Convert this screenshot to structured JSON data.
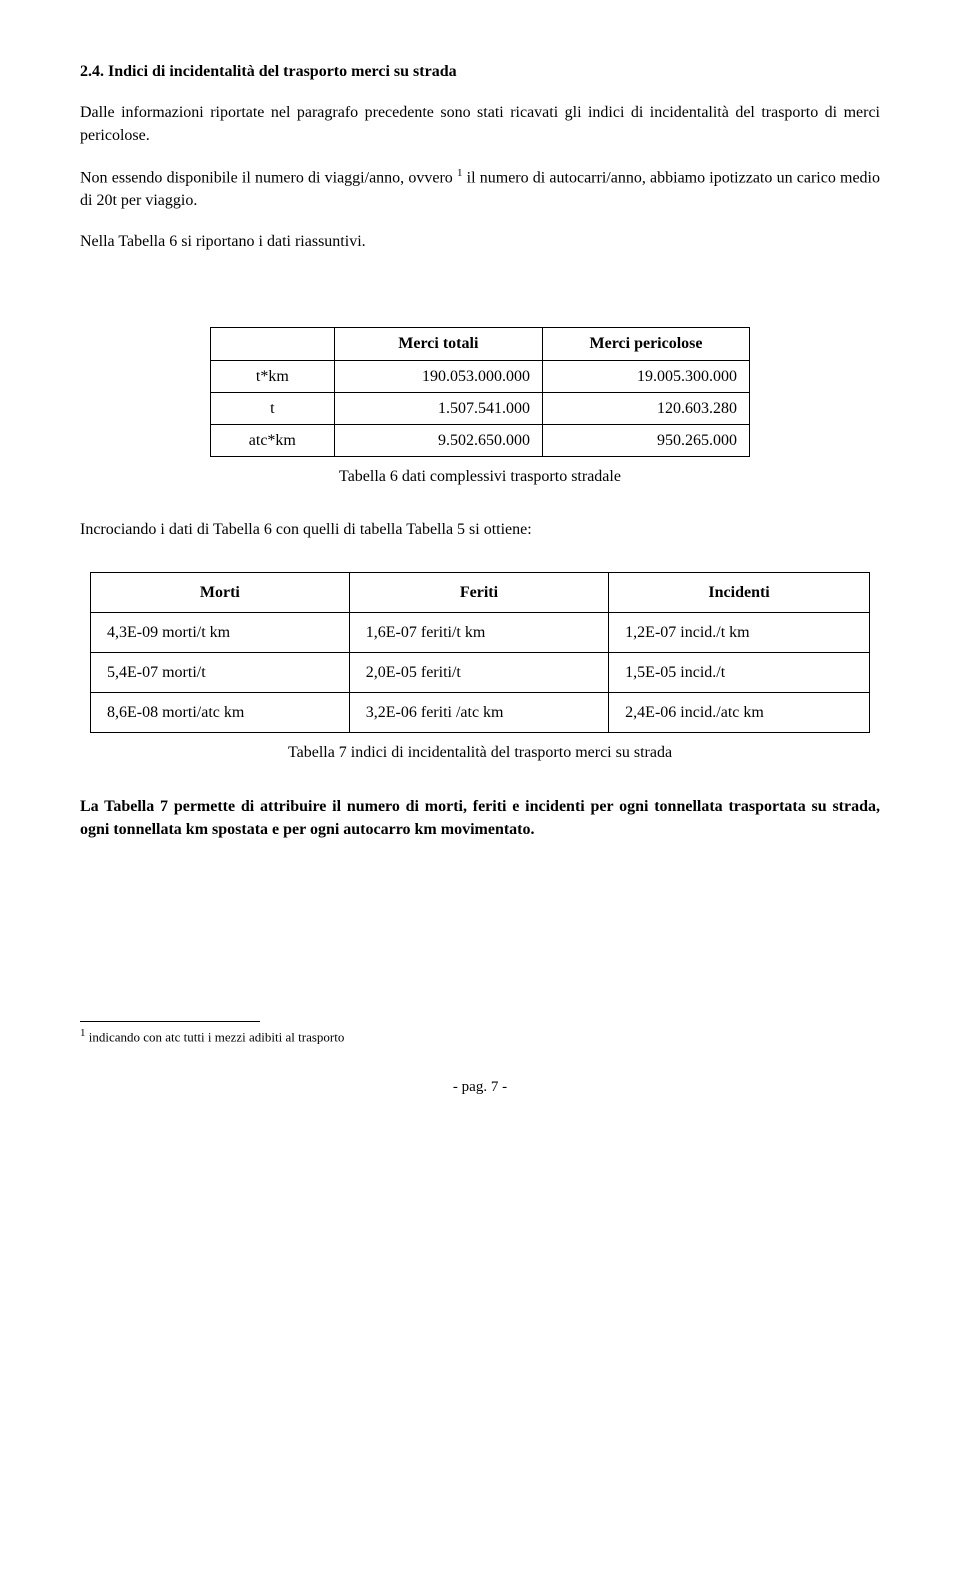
{
  "heading": "2.4. Indici di incidentalità del trasporto merci su strada",
  "para1": "Dalle informazioni riportate nel paragrafo precedente sono stati ricavati gli indici di incidentalità del trasporto di merci pericolose.",
  "para2_a": "Non essendo disponibile il numero di viaggi/anno, ovvero ",
  "para2_sup": "1",
  "para2_b": " il numero di autocarri/anno, abbiamo ipotizzato un carico medio di 20t per viaggio.",
  "para3": "Nella Tabella 6 si riportano i dati riassuntivi.",
  "table6": {
    "header_blank": "",
    "header_c1": "Merci totali",
    "header_c2": "Merci pericolose",
    "rows": [
      {
        "label": "t*km",
        "c1": "190.053.000.000",
        "c2": "19.005.300.000"
      },
      {
        "label": "t",
        "c1": "1.507.541.000",
        "c2": "120.603.280"
      },
      {
        "label": "atc*km",
        "c1": "9.502.650.000",
        "c2": "950.265.000"
      }
    ],
    "caption": "Tabella 6 dati complessivi trasporto stradale"
  },
  "para4": "Incrociando i dati di Tabella 6 con quelli di tabella Tabella 5 si ottiene:",
  "table7": {
    "header_c1": "Morti",
    "header_c2": "Feriti",
    "header_c3": "Incidenti",
    "rows": [
      {
        "c1": "4,3E-09 morti/t km",
        "c2": "1,6E-07 feriti/t km",
        "c3": "1,2E-07 incid./t km"
      },
      {
        "c1": "5,4E-07 morti/t",
        "c2": "2,0E-05 feriti/t",
        "c3": "1,5E-05 incid./t"
      },
      {
        "c1": "8,6E-08 morti/atc km",
        "c2": "3,2E-06 feriti /atc km",
        "c3": "2,4E-06 incid./atc km"
      }
    ],
    "caption": "Tabella 7 indici di incidentalità del trasporto merci su strada"
  },
  "para5": "La Tabella 7 permette di attribuire il numero di morti, feriti e incidenti per ogni tonnellata trasportata su strada, ogni tonnellata km spostata e per ogni autocarro km movimentato.",
  "footnote_marker": "1",
  "footnote_text": " indicando con atc tutti i mezzi  adibiti al trasporto",
  "pagenum": "- pag. 7 -"
}
